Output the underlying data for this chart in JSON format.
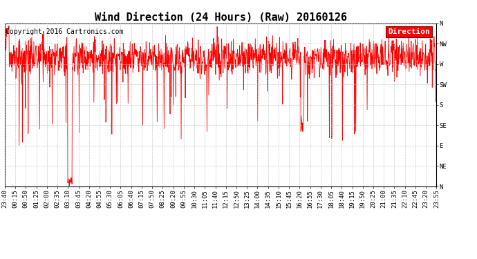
{
  "title": "Wind Direction (24 Hours) (Raw) 20160126",
  "copyright": "Copyright 2016 Cartronics.com",
  "legend_label": "Direction",
  "line_color": "#ff0000",
  "background_color": "#ffffff",
  "grid_color": "#bbbbbb",
  "ytick_labels": [
    "N",
    "NW",
    "W",
    "SW",
    "S",
    "SE",
    "E",
    "NE",
    "N"
  ],
  "ytick_values": [
    360,
    315,
    270,
    225,
    180,
    135,
    90,
    45,
    0
  ],
  "ylim": [
    0,
    360
  ],
  "xtick_labels": [
    "23:40",
    "00:15",
    "00:50",
    "01:25",
    "02:00",
    "02:35",
    "03:10",
    "03:45",
    "04:20",
    "04:55",
    "05:30",
    "06:05",
    "06:40",
    "07:15",
    "07:50",
    "08:25",
    "09:20",
    "09:55",
    "10:30",
    "11:05",
    "11:40",
    "12:15",
    "12:50",
    "13:25",
    "14:00",
    "14:35",
    "15:10",
    "15:45",
    "16:20",
    "16:55",
    "17:30",
    "18:05",
    "18:40",
    "19:15",
    "19:50",
    "20:25",
    "21:00",
    "21:35",
    "22:10",
    "22:45",
    "23:20",
    "23:55"
  ],
  "title_fontsize": 11,
  "copyright_fontsize": 7,
  "tick_fontsize": 6.5,
  "legend_fontsize": 8,
  "fig_width": 6.9,
  "fig_height": 3.75,
  "dpi": 100
}
